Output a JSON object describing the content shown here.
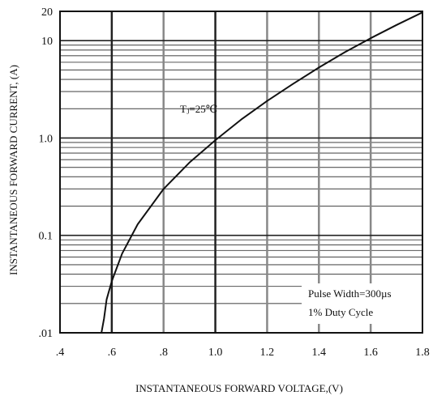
{
  "chart_data": {
    "type": "line",
    "title": "",
    "xlabel": "INSTANTANEOUS FORWARD VOLTAGE,(V)",
    "ylabel": "INSTANTANEOUS FORWARD CURRENT, (A)",
    "xlim": [
      0.4,
      1.8
    ],
    "ylim": [
      0.01,
      20
    ],
    "yscale": "log",
    "grid": true,
    "x_ticks": [
      0.4,
      0.6,
      0.8,
      1.0,
      1.2,
      1.4,
      1.6,
      1.8
    ],
    "x_tick_labels": [
      ".4",
      ".6",
      ".8",
      "1.0",
      "1.2",
      "1.4",
      "1.6",
      "1.8"
    ],
    "y_ticks": [
      0.01,
      0.1,
      1.0,
      10,
      20
    ],
    "y_tick_labels": [
      ".01",
      "0.1",
      "1.0",
      "10",
      "20"
    ],
    "series": [
      {
        "name": "",
        "x": [
          0.56,
          0.57,
          0.58,
          0.6,
          0.64,
          0.7,
          0.8,
          0.9,
          1.0,
          1.1,
          1.2,
          1.3,
          1.4,
          1.5,
          1.6,
          1.7,
          1.8
        ],
        "y": [
          0.01,
          0.014,
          0.022,
          0.034,
          0.065,
          0.13,
          0.3,
          0.56,
          0.95,
          1.55,
          2.4,
          3.6,
          5.3,
          7.6,
          10.6,
          14.5,
          19.5
        ]
      }
    ],
    "annotations": {
      "temp_label": "Tⱼ=25℃",
      "pulse_label": "Pulse Width=300µs",
      "duty_label": "1% Duty Cycle"
    }
  }
}
